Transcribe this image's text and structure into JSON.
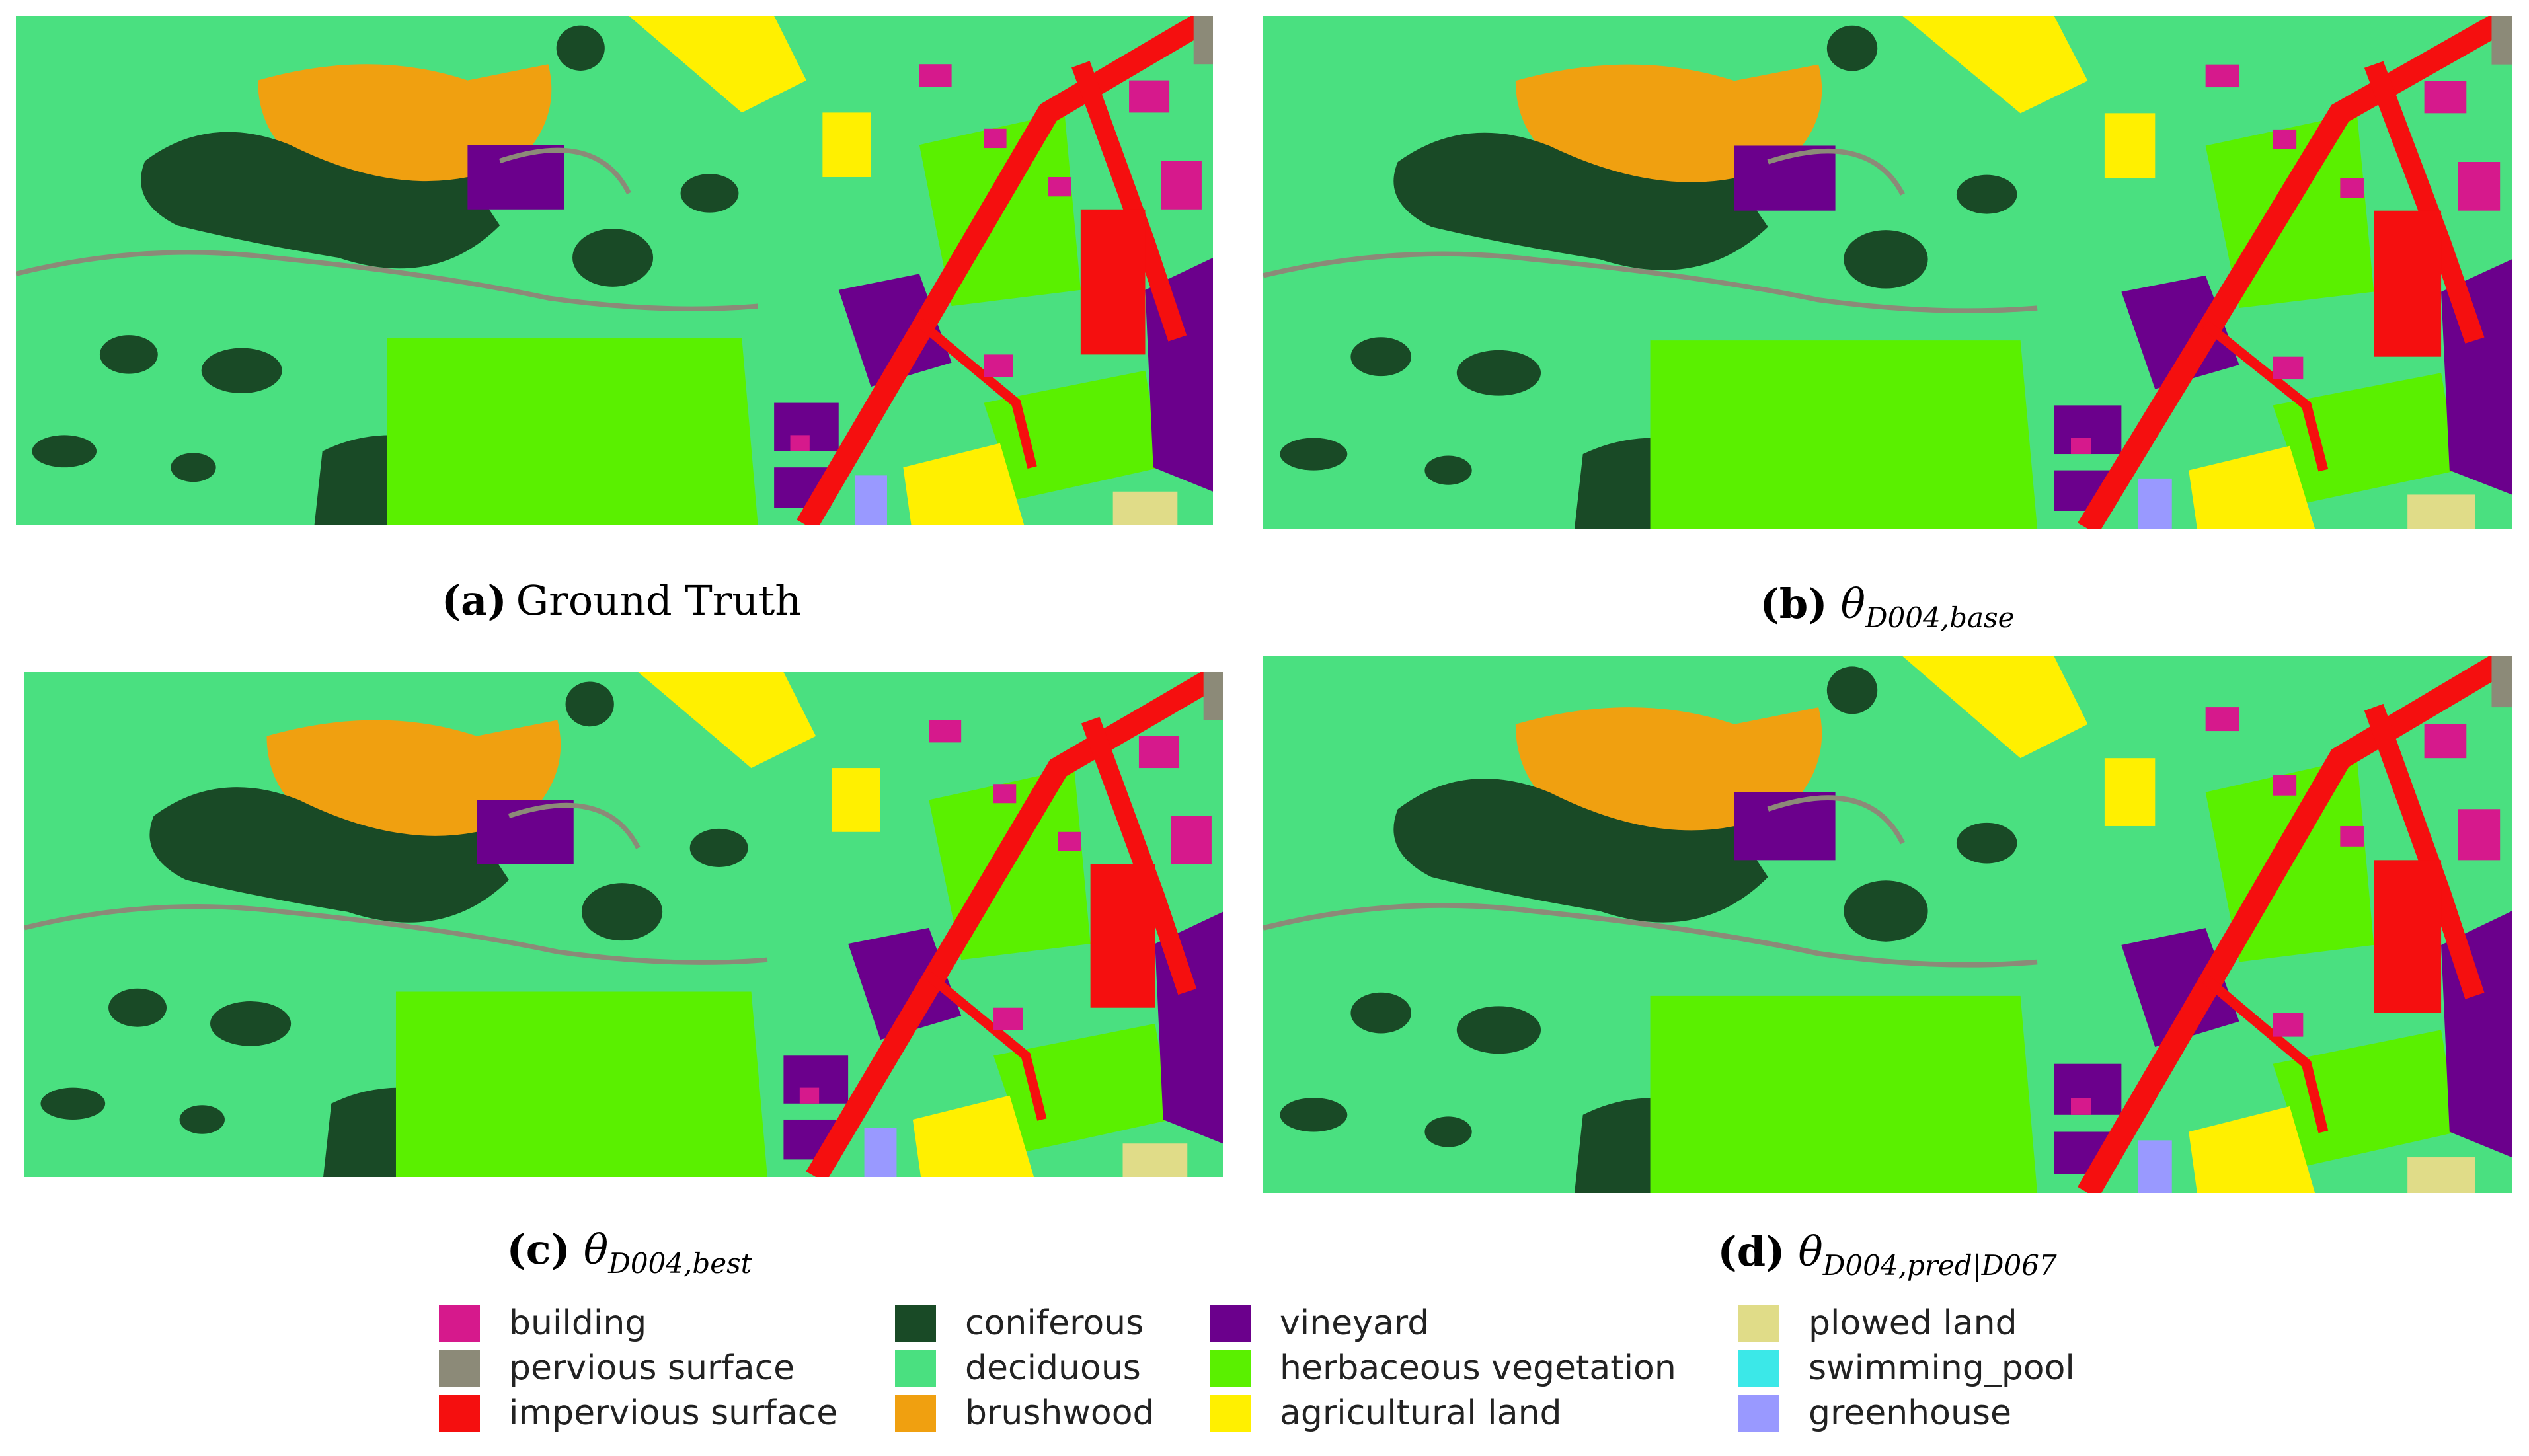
{
  "panels": [
    {
      "label": "(a)",
      "text": "Ground Truth"
    },
    {
      "label": "(b)",
      "symbol": "θ",
      "subscript": "D004,base"
    },
    {
      "label": "(c)",
      "symbol": "θ",
      "subscript": "D004,best"
    },
    {
      "label": "(d)",
      "symbol": "θ",
      "subscript": "D004,pred|D067"
    }
  ],
  "legend": [
    {
      "name": "building",
      "color": "#d6198c"
    },
    {
      "name": "pervious surface",
      "color": "#8c8a78"
    },
    {
      "name": "impervious surface",
      "color": "#f50f0f"
    },
    {
      "name": "coniferous",
      "color": "#194a26"
    },
    {
      "name": "deciduous",
      "color": "#4ae080"
    },
    {
      "name": "brushwood",
      "color": "#f0a010"
    },
    {
      "name": "vineyard",
      "color": "#6b008c"
    },
    {
      "name": "herbaceous vegetation",
      "color": "#5af000"
    },
    {
      "name": "agricultural land",
      "color": "#fff000"
    },
    {
      "name": "plowed land",
      "color": "#e0dc88"
    },
    {
      "name": "swimming_pool",
      "color": "#3be8e8"
    },
    {
      "name": "greenhouse",
      "color": "#9999ff"
    }
  ]
}
